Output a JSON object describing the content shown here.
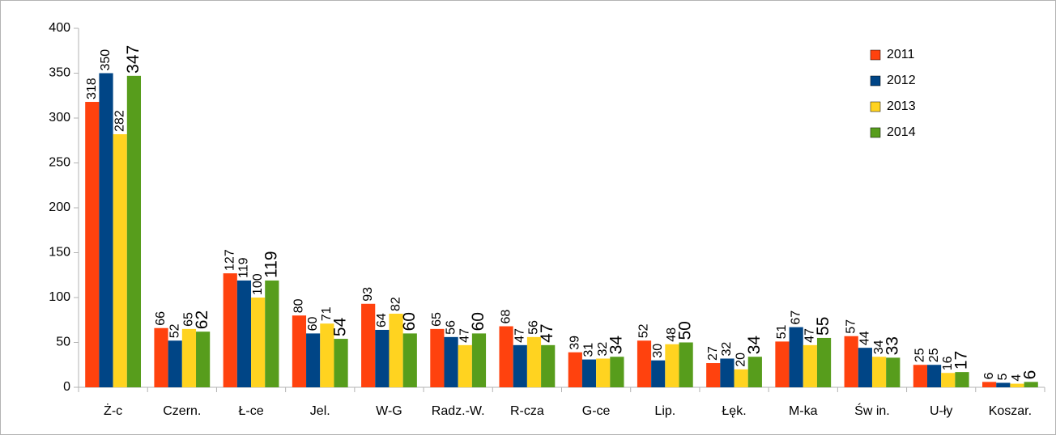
{
  "chart_data": {
    "type": "bar",
    "categories": [
      "Ż-c",
      "Czern.",
      "Ł-ce",
      "Jel.",
      "W-G",
      "Radz.-W.",
      "R-cza",
      "G-ce",
      "Lip.",
      "Łęk.",
      "M-ka",
      "Św in.",
      "U-ły",
      "Koszar."
    ],
    "series": [
      {
        "name": "2011",
        "color": "#ff420e",
        "values": [
          318,
          66,
          127,
          80,
          93,
          65,
          68,
          39,
          52,
          27,
          51,
          57,
          25,
          6
        ]
      },
      {
        "name": "2012",
        "color": "#004586",
        "values": [
          350,
          52,
          119,
          60,
          64,
          56,
          47,
          31,
          30,
          32,
          67,
          44,
          25,
          5
        ]
      },
      {
        "name": "2013",
        "color": "#ffd320",
        "values": [
          282,
          65,
          100,
          71,
          82,
          47,
          56,
          32,
          48,
          20,
          47,
          34,
          16,
          4
        ]
      },
      {
        "name": "2014",
        "color": "#579d1c",
        "values": [
          347,
          62,
          119,
          54,
          60,
          60,
          47,
          34,
          50,
          34,
          55,
          33,
          17,
          6
        ]
      }
    ],
    "ylim": [
      0,
      400
    ],
    "yticks": [
      0,
      50,
      100,
      150,
      200,
      250,
      300,
      350,
      400
    ],
    "grid": false,
    "legend": "top-right"
  }
}
